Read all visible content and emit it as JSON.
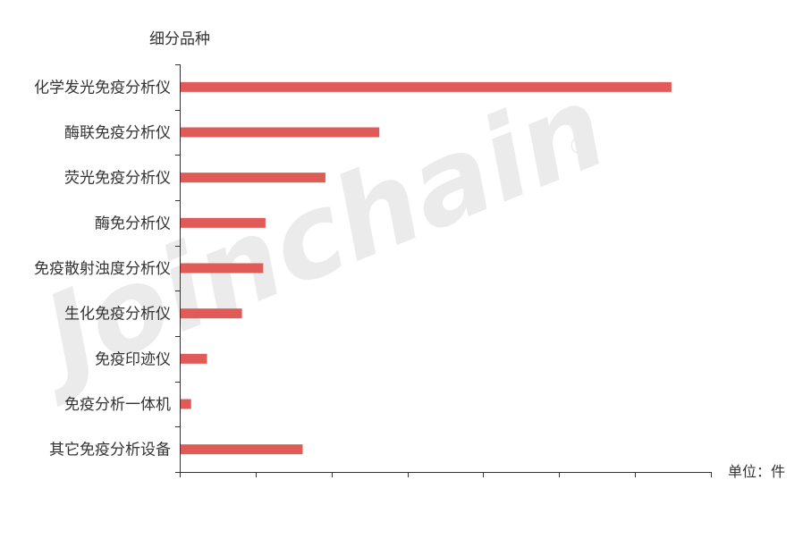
{
  "watermark": {
    "text": "Joinchain",
    "registered_mark": "®"
  },
  "chart_data": {
    "type": "bar",
    "orientation": "horizontal",
    "title": "",
    "ylabel": "细分品种",
    "xlabel": "单位：件",
    "xlim": [
      0,
      700
    ],
    "grid": false,
    "categories": [
      "化学发光免疫分析仪",
      "酶联免疫分析仪",
      "荧光免疫分析仪",
      "酶免分析仪",
      "免疫散射浊度分析仪",
      "生化免疫分析仪",
      "免疫印迹仪",
      "免疫分析一体机",
      "其它免疫分析设备"
    ],
    "values": [
      648,
      263,
      192,
      113,
      110,
      82,
      36,
      15,
      162
    ],
    "colors": {
      "bar": "#e05a57",
      "axis": "#333333",
      "label": "#333333",
      "watermark": "#ebebeb"
    }
  }
}
